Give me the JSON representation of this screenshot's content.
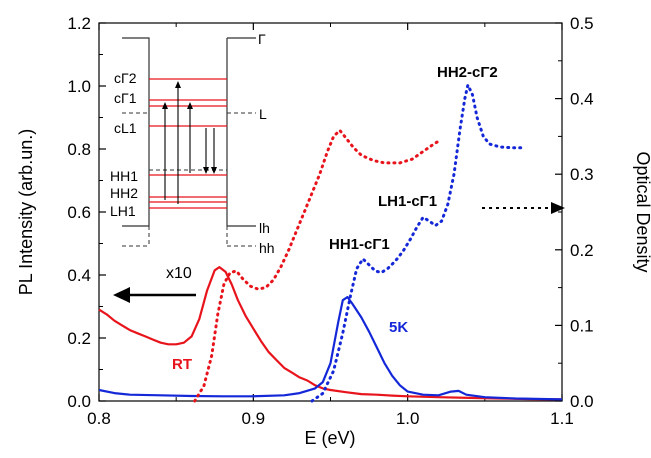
{
  "chart_data": {
    "type": "line",
    "xlabel": "E (eV)",
    "ylabel_left": "PL Intensity (arb.un.)",
    "ylabel_right": "Optical Density",
    "xlim": [
      0.8,
      1.1
    ],
    "ylim_left": [
      0.0,
      1.2
    ],
    "ylim_right": [
      0.0,
      0.5
    ],
    "x_ticks": [
      "0.8",
      "0.9",
      "1.0",
      "1.1"
    ],
    "y_ticks_left": [
      "0.0",
      "0.2",
      "0.4",
      "0.6",
      "0.8",
      "1.0",
      "1.2"
    ],
    "y_ticks_right": [
      "0.0",
      "0.1",
      "0.2",
      "0.3",
      "0.4",
      "0.5"
    ],
    "grid": false,
    "colors": {
      "rt": "#e8141c",
      "lowT": "#1428d8",
      "axis": "#000000"
    },
    "series": [
      {
        "name": "RT",
        "kind": "PL",
        "axis": "left",
        "color": "#e8141c",
        "style": "solid",
        "points": [
          [
            0.8,
            0.29
          ],
          [
            0.805,
            0.275
          ],
          [
            0.81,
            0.255
          ],
          [
            0.815,
            0.24
          ],
          [
            0.82,
            0.225
          ],
          [
            0.825,
            0.215
          ],
          [
            0.83,
            0.205
          ],
          [
            0.835,
            0.195
          ],
          [
            0.84,
            0.185
          ],
          [
            0.845,
            0.18
          ],
          [
            0.85,
            0.18
          ],
          [
            0.855,
            0.185
          ],
          [
            0.86,
            0.205
          ],
          [
            0.865,
            0.26
          ],
          [
            0.87,
            0.35
          ],
          [
            0.875,
            0.415
          ],
          [
            0.878,
            0.425
          ],
          [
            0.882,
            0.41
          ],
          [
            0.886,
            0.37
          ],
          [
            0.89,
            0.32
          ],
          [
            0.895,
            0.27
          ],
          [
            0.9,
            0.23
          ],
          [
            0.905,
            0.19
          ],
          [
            0.91,
            0.155
          ],
          [
            0.915,
            0.13
          ],
          [
            0.92,
            0.105
          ],
          [
            0.925,
            0.09
          ],
          [
            0.93,
            0.075
          ],
          [
            0.935,
            0.065
          ],
          [
            0.94,
            0.05
          ],
          [
            0.945,
            0.04
          ],
          [
            0.95,
            0.035
          ],
          [
            0.96,
            0.028
          ],
          [
            0.97,
            0.022
          ],
          [
            0.98,
            0.02
          ],
          [
            0.99,
            0.017
          ],
          [
            1.0,
            0.015
          ],
          [
            1.02,
            0.012
          ],
          [
            1.04,
            0.01
          ],
          [
            1.06,
            0.008
          ],
          [
            1.08,
            0.006
          ],
          [
            1.1,
            0.005
          ]
        ]
      },
      {
        "name": "5K",
        "kind": "PL",
        "axis": "left",
        "color": "#1428d8",
        "style": "solid",
        "points": [
          [
            0.8,
            0.035
          ],
          [
            0.81,
            0.025
          ],
          [
            0.82,
            0.02
          ],
          [
            0.84,
            0.018
          ],
          [
            0.86,
            0.016
          ],
          [
            0.88,
            0.015
          ],
          [
            0.9,
            0.015
          ],
          [
            0.92,
            0.018
          ],
          [
            0.93,
            0.025
          ],
          [
            0.94,
            0.04
          ],
          [
            0.945,
            0.06
          ],
          [
            0.95,
            0.12
          ],
          [
            0.955,
            0.25
          ],
          [
            0.958,
            0.32
          ],
          [
            0.961,
            0.33
          ],
          [
            0.964,
            0.31
          ],
          [
            0.97,
            0.265
          ],
          [
            0.975,
            0.22
          ],
          [
            0.98,
            0.17
          ],
          [
            0.985,
            0.12
          ],
          [
            0.99,
            0.08
          ],
          [
            0.995,
            0.05
          ],
          [
            1.0,
            0.03
          ],
          [
            1.01,
            0.02
          ],
          [
            1.02,
            0.018
          ],
          [
            1.028,
            0.03
          ],
          [
            1.033,
            0.032
          ],
          [
            1.038,
            0.02
          ],
          [
            1.05,
            0.012
          ],
          [
            1.07,
            0.008
          ],
          [
            1.1,
            0.005
          ]
        ]
      },
      {
        "name": "RT",
        "kind": "Optical Density",
        "axis": "right",
        "color": "#e8141c",
        "style": "dotted",
        "points": [
          [
            0.862,
            0.0
          ],
          [
            0.868,
            0.02
          ],
          [
            0.873,
            0.06
          ],
          [
            0.877,
            0.115
          ],
          [
            0.881,
            0.155
          ],
          [
            0.885,
            0.17
          ],
          [
            0.889,
            0.172
          ],
          [
            0.893,
            0.162
          ],
          [
            0.898,
            0.152
          ],
          [
            0.903,
            0.148
          ],
          [
            0.908,
            0.15
          ],
          [
            0.913,
            0.16
          ],
          [
            0.918,
            0.178
          ],
          [
            0.923,
            0.2
          ],
          [
            0.928,
            0.225
          ],
          [
            0.933,
            0.25
          ],
          [
            0.938,
            0.275
          ],
          [
            0.943,
            0.3
          ],
          [
            0.948,
            0.33
          ],
          [
            0.952,
            0.35
          ],
          [
            0.956,
            0.358
          ],
          [
            0.96,
            0.348
          ],
          [
            0.965,
            0.335
          ],
          [
            0.97,
            0.325
          ],
          [
            0.978,
            0.318
          ],
          [
            0.985,
            0.315
          ],
          [
            0.995,
            0.315
          ],
          [
            1.003,
            0.32
          ],
          [
            1.01,
            0.33
          ],
          [
            1.017,
            0.34
          ],
          [
            1.021,
            0.345
          ]
        ]
      },
      {
        "name": "5K",
        "kind": "Optical Density",
        "axis": "right",
        "color": "#1428d8",
        "style": "dotted",
        "points": [
          [
            0.938,
            0.0
          ],
          [
            0.945,
            0.01
          ],
          [
            0.952,
            0.04
          ],
          [
            0.958,
            0.09
          ],
          [
            0.963,
            0.14
          ],
          [
            0.967,
            0.175
          ],
          [
            0.971,
            0.188
          ],
          [
            0.975,
            0.18
          ],
          [
            0.979,
            0.172
          ],
          [
            0.983,
            0.17
          ],
          [
            0.987,
            0.175
          ],
          [
            0.992,
            0.185
          ],
          [
            0.997,
            0.198
          ],
          [
            1.002,
            0.215
          ],
          [
            1.006,
            0.23
          ],
          [
            1.01,
            0.243
          ],
          [
            1.014,
            0.238
          ],
          [
            1.018,
            0.232
          ],
          [
            1.022,
            0.238
          ],
          [
            1.026,
            0.26
          ],
          [
            1.03,
            0.3
          ],
          [
            1.034,
            0.36
          ],
          [
            1.037,
            0.4
          ],
          [
            1.039,
            0.418
          ],
          [
            1.042,
            0.405
          ],
          [
            1.045,
            0.375
          ],
          [
            1.049,
            0.35
          ],
          [
            1.053,
            0.34
          ],
          [
            1.06,
            0.336
          ],
          [
            1.067,
            0.335
          ],
          [
            1.074,
            0.335
          ]
        ]
      }
    ],
    "annotations": {
      "x10": "x10",
      "rt": "RT",
      "lowT": "5K",
      "hh1": "HH1-cΓ1",
      "lh1": "LH1-cΓ1",
      "hh2": "HH2-cΓ2"
    },
    "inset": {
      "labels_left": [
        "cΓ2",
        "cΓ1",
        "cL1",
        "HH1",
        "HH2",
        "LH1"
      ],
      "labels_right": [
        "Γ",
        "L",
        "lh",
        "hh"
      ]
    }
  }
}
